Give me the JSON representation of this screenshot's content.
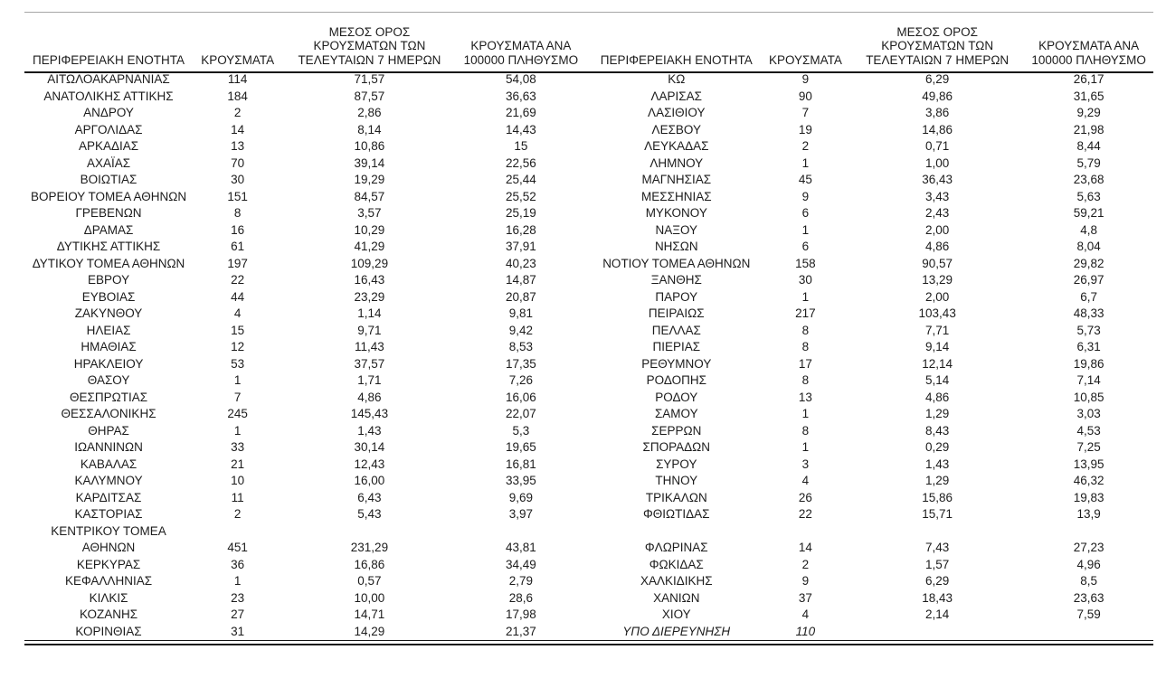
{
  "page": {
    "background": "#ffffff",
    "text_color": "#1c1c1c",
    "rule_gray": "#a6a6a6",
    "rule_black": "#141414"
  },
  "tables": [
    {
      "headers": [
        "ΠΕΡΙΦΕΡΕΙΑΚΗ ΕΝΟΤΗΤΑ",
        "ΚΡΟΥΣΜΑΤΑ",
        "ΜΕΣΟΣ ΟΡΟΣ\nΚΡΟΥΣΜΑΤΩΝ ΤΩΝ\nΤΕΛΕΥΤΑΙΩΝ 7 ΗΜΕΡΩΝ",
        "ΚΡΟΥΣΜΑΤΑ ΑΝΑ\n100000 ΠΛΗΘΥΣΜΟ"
      ],
      "rows": [
        {
          "region": "ΑΙΤΩΛΟΑΚΑΡΝΑΝΙΑΣ",
          "cases": "114",
          "avg7": "71,57",
          "per100k": "54,08"
        },
        {
          "region": "ΑΝΑΤΟΛΙΚΗΣ ΑΤΤΙΚΗΣ",
          "cases": "184",
          "avg7": "87,57",
          "per100k": "36,63"
        },
        {
          "region": "ΑΝΔΡΟΥ",
          "cases": "2",
          "avg7": "2,86",
          "per100k": "21,69"
        },
        {
          "region": "ΑΡΓΟΛΙΔΑΣ",
          "cases": "14",
          "avg7": "8,14",
          "per100k": "14,43"
        },
        {
          "region": "ΑΡΚΑΔΙΑΣ",
          "cases": "13",
          "avg7": "10,86",
          "per100k": "15"
        },
        {
          "region": "ΑΧΑΪΑΣ",
          "cases": "70",
          "avg7": "39,14",
          "per100k": "22,56"
        },
        {
          "region": "ΒΟΙΩΤΙΑΣ",
          "cases": "30",
          "avg7": "19,29",
          "per100k": "25,44"
        },
        {
          "region": "ΒΟΡΕΙΟΥ ΤΟΜΕΑ ΑΘΗΝΩΝ",
          "cases": "151",
          "avg7": "84,57",
          "per100k": "25,52"
        },
        {
          "region": "ΓΡΕΒΕΝΩΝ",
          "cases": "8",
          "avg7": "3,57",
          "per100k": "25,19"
        },
        {
          "region": "ΔΡΑΜΑΣ",
          "cases": "16",
          "avg7": "10,29",
          "per100k": "16,28"
        },
        {
          "region": "ΔΥΤΙΚΗΣ ΑΤΤΙΚΗΣ",
          "cases": "61",
          "avg7": "41,29",
          "per100k": "37,91"
        },
        {
          "region": "ΔΥΤΙΚΟΥ ΤΟΜΕΑ ΑΘΗΝΩΝ",
          "cases": "197",
          "avg7": "109,29",
          "per100k": "40,23"
        },
        {
          "region": "ΕΒΡΟΥ",
          "cases": "22",
          "avg7": "16,43",
          "per100k": "14,87"
        },
        {
          "region": "ΕΥΒΟΙΑΣ",
          "cases": "44",
          "avg7": "23,29",
          "per100k": "20,87"
        },
        {
          "region": "ΖΑΚΥΝΘΟΥ",
          "cases": "4",
          "avg7": "1,14",
          "per100k": "9,81"
        },
        {
          "region": "ΗΛΕΙΑΣ",
          "cases": "15",
          "avg7": "9,71",
          "per100k": "9,42"
        },
        {
          "region": "ΗΜΑΘΙΑΣ",
          "cases": "12",
          "avg7": "11,43",
          "per100k": "8,53"
        },
        {
          "region": "ΗΡΑΚΛΕΙΟΥ",
          "cases": "53",
          "avg7": "37,57",
          "per100k": "17,35"
        },
        {
          "region": "ΘΑΣΟΥ",
          "cases": "1",
          "avg7": "1,71",
          "per100k": "7,26"
        },
        {
          "region": "ΘΕΣΠΡΩΤΙΑΣ",
          "cases": "7",
          "avg7": "4,86",
          "per100k": "16,06"
        },
        {
          "region": "ΘΕΣΣΑΛΟΝΙΚΗΣ",
          "cases": "245",
          "avg7": "145,43",
          "per100k": "22,07"
        },
        {
          "region": "ΘΗΡΑΣ",
          "cases": "1",
          "avg7": "1,43",
          "per100k": "5,3"
        },
        {
          "region": "ΙΩΑΝΝΙΝΩΝ",
          "cases": "33",
          "avg7": "30,14",
          "per100k": "19,65"
        },
        {
          "region": "ΚΑΒΑΛΑΣ",
          "cases": "21",
          "avg7": "12,43",
          "per100k": "16,81"
        },
        {
          "region": "ΚΑΛΥΜΝΟΥ",
          "cases": "10",
          "avg7": "16,00",
          "per100k": "33,95"
        },
        {
          "region": "ΚΑΡΔΙΤΣΑΣ",
          "cases": "11",
          "avg7": "6,43",
          "per100k": "9,69"
        },
        {
          "region": "ΚΑΣΤΟΡΙΑΣ",
          "cases": "2",
          "avg7": "5,43",
          "per100k": "3,97"
        },
        {
          "region": "ΚΕΝΤΡΙΚΟΥ ΤΟΜΕΑ\nΑΘΗΝΩΝ",
          "cases": "451",
          "avg7": "231,29",
          "per100k": "43,81"
        },
        {
          "region": "ΚΕΡΚΥΡΑΣ",
          "cases": "36",
          "avg7": "16,86",
          "per100k": "34,49"
        },
        {
          "region": "ΚΕΦΑΛΛΗΝΙΑΣ",
          "cases": "1",
          "avg7": "0,57",
          "per100k": "2,79"
        },
        {
          "region": "ΚΙΛΚΙΣ",
          "cases": "23",
          "avg7": "10,00",
          "per100k": "28,6"
        },
        {
          "region": "ΚΟΖΑΝΗΣ",
          "cases": "27",
          "avg7": "14,71",
          "per100k": "17,98"
        },
        {
          "region": "ΚΟΡΙΝΘΙΑΣ",
          "cases": "31",
          "avg7": "14,29",
          "per100k": "21,37"
        }
      ]
    },
    {
      "headers": [
        "ΠΕΡΙΦΕΡΕΙΑΚΗ ΕΝΟΤΗΤΑ",
        "ΚΡΟΥΣΜΑΤΑ",
        "ΜΕΣΟΣ ΟΡΟΣ\nΚΡΟΥΣΜΑΤΩΝ ΤΩΝ\nΤΕΛΕΥΤΑΙΩΝ 7 ΗΜΕΡΩΝ",
        "ΚΡΟΥΣΜΑΤΑ ΑΝΑ\n100000 ΠΛΗΘΥΣΜΟ"
      ],
      "rows": [
        {
          "region": "ΚΩ",
          "cases": "9",
          "avg7": "6,29",
          "per100k": "26,17"
        },
        {
          "region": "ΛΑΡΙΣΑΣ",
          "cases": "90",
          "avg7": "49,86",
          "per100k": "31,65"
        },
        {
          "region": "ΛΑΣΙΘΙΟΥ",
          "cases": "7",
          "avg7": "3,86",
          "per100k": "9,29"
        },
        {
          "region": "ΛΕΣΒΟΥ",
          "cases": "19",
          "avg7": "14,86",
          "per100k": "21,98"
        },
        {
          "region": "ΛΕΥΚΑΔΑΣ",
          "cases": "2",
          "avg7": "0,71",
          "per100k": "8,44"
        },
        {
          "region": "ΛΗΜΝΟΥ",
          "cases": "1",
          "avg7": "1,00",
          "per100k": "5,79"
        },
        {
          "region": "ΜΑΓΝΗΣΙΑΣ",
          "cases": "45",
          "avg7": "36,43",
          "per100k": "23,68"
        },
        {
          "region": "ΜΕΣΣΗΝΙΑΣ",
          "cases": "9",
          "avg7": "3,43",
          "per100k": "5,63"
        },
        {
          "region": "ΜΥΚΟΝΟΥ",
          "cases": "6",
          "avg7": "2,43",
          "per100k": "59,21"
        },
        {
          "region": "ΝΑΞΟΥ",
          "cases": "1",
          "avg7": "2,00",
          "per100k": "4,8"
        },
        {
          "region": "ΝΗΣΩΝ",
          "cases": "6",
          "avg7": "4,86",
          "per100k": "8,04"
        },
        {
          "region": "ΝΟΤΙΟΥ ΤΟΜΕΑ ΑΘΗΝΩΝ",
          "cases": "158",
          "avg7": "90,57",
          "per100k": "29,82"
        },
        {
          "region": "ΞΑΝΘΗΣ",
          "cases": "30",
          "avg7": "13,29",
          "per100k": "26,97"
        },
        {
          "region": "ΠΑΡΟΥ",
          "cases": "1",
          "avg7": "2,00",
          "per100k": "6,7"
        },
        {
          "region": "ΠΕΙΡΑΙΩΣ",
          "cases": "217",
          "avg7": "103,43",
          "per100k": "48,33"
        },
        {
          "region": "ΠΕΛΛΑΣ",
          "cases": "8",
          "avg7": "7,71",
          "per100k": "5,73"
        },
        {
          "region": "ΠΙΕΡΙΑΣ",
          "cases": "8",
          "avg7": "9,14",
          "per100k": "6,31"
        },
        {
          "region": "ΡΕΘΥΜΝΟΥ",
          "cases": "17",
          "avg7": "12,14",
          "per100k": "19,86"
        },
        {
          "region": "ΡΟΔΟΠΗΣ",
          "cases": "8",
          "avg7": "5,14",
          "per100k": "7,14"
        },
        {
          "region": "ΡΟΔΟΥ",
          "cases": "13",
          "avg7": "4,86",
          "per100k": "10,85"
        },
        {
          "region": "ΣΑΜΟΥ",
          "cases": "1",
          "avg7": "1,29",
          "per100k": "3,03"
        },
        {
          "region": "ΣΕΡΡΩΝ",
          "cases": "8",
          "avg7": "8,43",
          "per100k": "4,53"
        },
        {
          "region": "ΣΠΟΡΑΔΩΝ",
          "cases": "1",
          "avg7": "0,29",
          "per100k": "7,25"
        },
        {
          "region": "ΣΥΡΟΥ",
          "cases": "3",
          "avg7": "1,43",
          "per100k": "13,95"
        },
        {
          "region": "ΤΗΝΟΥ",
          "cases": "4",
          "avg7": "1,29",
          "per100k": "46,32"
        },
        {
          "region": "ΤΡΙΚΑΛΩΝ",
          "cases": "26",
          "avg7": "15,86",
          "per100k": "19,83"
        },
        {
          "region": "ΦΘΙΩΤΙΔΑΣ",
          "cases": "22",
          "avg7": "15,71",
          "per100k": "13,9"
        },
        {
          "region": "",
          "cases": "",
          "avg7": "",
          "per100k": ""
        },
        {
          "region": "ΦΛΩΡΙΝΑΣ",
          "cases": "14",
          "avg7": "7,43",
          "per100k": "27,23"
        },
        {
          "region": "ΦΩΚΙΔΑΣ",
          "cases": "2",
          "avg7": "1,57",
          "per100k": "4,96"
        },
        {
          "region": "ΧΑΛΚΙΔΙΚΗΣ",
          "cases": "9",
          "avg7": "6,29",
          "per100k": "8,5"
        },
        {
          "region": "ΧΑΝΙΩΝ",
          "cases": "37",
          "avg7": "18,43",
          "per100k": "23,63"
        },
        {
          "region": "ΧΙΟΥ",
          "cases": "4",
          "avg7": "2,14",
          "per100k": "7,59"
        },
        {
          "region": "ΥΠΟ ΔΙΕΡΕΥΝΗΣΗ",
          "cases": "110",
          "avg7": "",
          "per100k": "",
          "italic": true
        }
      ]
    }
  ]
}
